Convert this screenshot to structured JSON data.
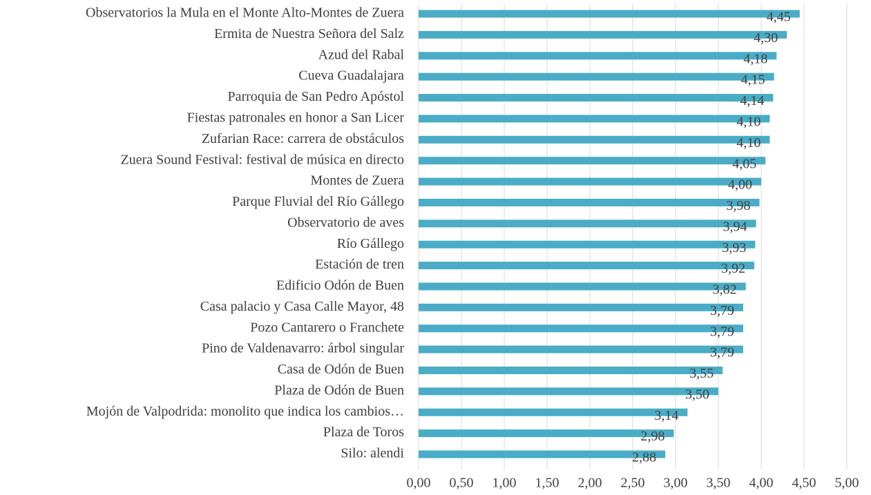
{
  "chart_data": {
    "type": "bar",
    "orientation": "horizontal",
    "color": "#4aacc6",
    "grid": true,
    "categories": [
      "Observatorios la Mula en el Monte Alto-Montes de Zuera",
      "Ermita de Nuestra Señora del Salz",
      "Azud del Rabal",
      "Cueva Guadalajara",
      "Parroquia de San Pedro Apóstol",
      "Fiestas patronales en honor a San Licer",
      "Zufarian Race: carrera de obstáculos",
      "Zuera Sound Festival: festival de música en directo",
      "Montes de Zuera",
      "Parque Fluvial del Río Gállego",
      "Observatorio de aves",
      "Río Gállego",
      "Estación de tren",
      "Edificio Odón de Buen",
      "Casa palacio y Casa Calle Mayor, 48",
      "Pozo Cantarero o Franchete",
      "Pino de Valdenavarro: árbol singular",
      "Casa de Odón de Buen",
      "Plaza de Odón de Buen",
      "Mojón de Valpodrida: monolito que indica los cambios…",
      "Plaza de Toros",
      "Silo: alendi"
    ],
    "values": [
      4.45,
      4.3,
      4.18,
      4.15,
      4.14,
      4.1,
      4.1,
      4.05,
      4.0,
      3.98,
      3.94,
      3.93,
      3.92,
      3.82,
      3.79,
      3.79,
      3.79,
      3.55,
      3.5,
      3.14,
      2.98,
      2.88
    ],
    "value_labels": [
      "4,45",
      "4,30",
      "4,18",
      "4,15",
      "4,14",
      "4,10",
      "4,10",
      "4,05",
      "4,00",
      "3,98",
      "3,94",
      "3,93",
      "3,92",
      "3,82",
      "3,79",
      "3,79",
      "3,79",
      "3,55",
      "3,50",
      "3,14",
      "2,98",
      "2,88"
    ],
    "xlim": [
      0,
      5
    ],
    "xticks": [
      {
        "value": 0,
        "label": "0,00"
      },
      {
        "value": 0.5,
        "label": "0,50"
      },
      {
        "value": 1,
        "label": "1,00"
      },
      {
        "value": 1.5,
        "label": "1,50"
      },
      {
        "value": 2,
        "label": "2,00"
      },
      {
        "value": 2.5,
        "label": "2,50"
      },
      {
        "value": 3,
        "label": "3,00"
      },
      {
        "value": 3.5,
        "label": "3,50"
      },
      {
        "value": 4,
        "label": "4,00"
      },
      {
        "value": 4.5,
        "label": "4,50"
      },
      {
        "value": 5,
        "label": "5,00"
      }
    ]
  }
}
